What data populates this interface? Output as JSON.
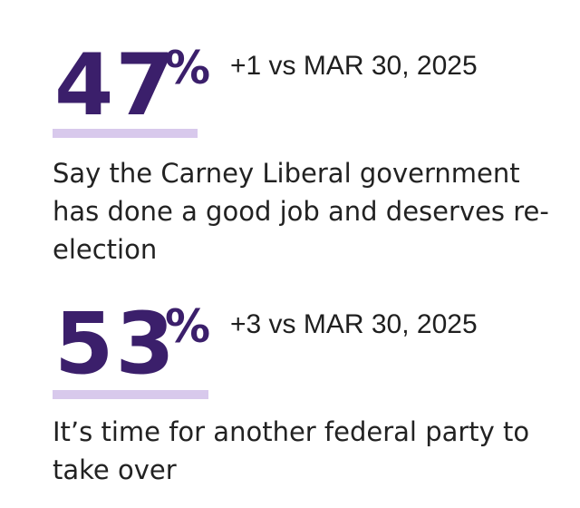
{
  "stats": [
    {
      "value": "47",
      "percent_sign": "%",
      "change": "+1 vs MAR 30, 2025",
      "description": "Say the Carney Liberal government has done a good job and deserves re-election"
    },
    {
      "value": "53",
      "percent_sign": "%",
      "change": "+3 vs MAR 30, 2025",
      "description": "It’s time for another federal party to take over"
    }
  ],
  "colors": {
    "accent": "#3b1f6b",
    "underline": "#d8c9ec",
    "text": "#222222"
  }
}
